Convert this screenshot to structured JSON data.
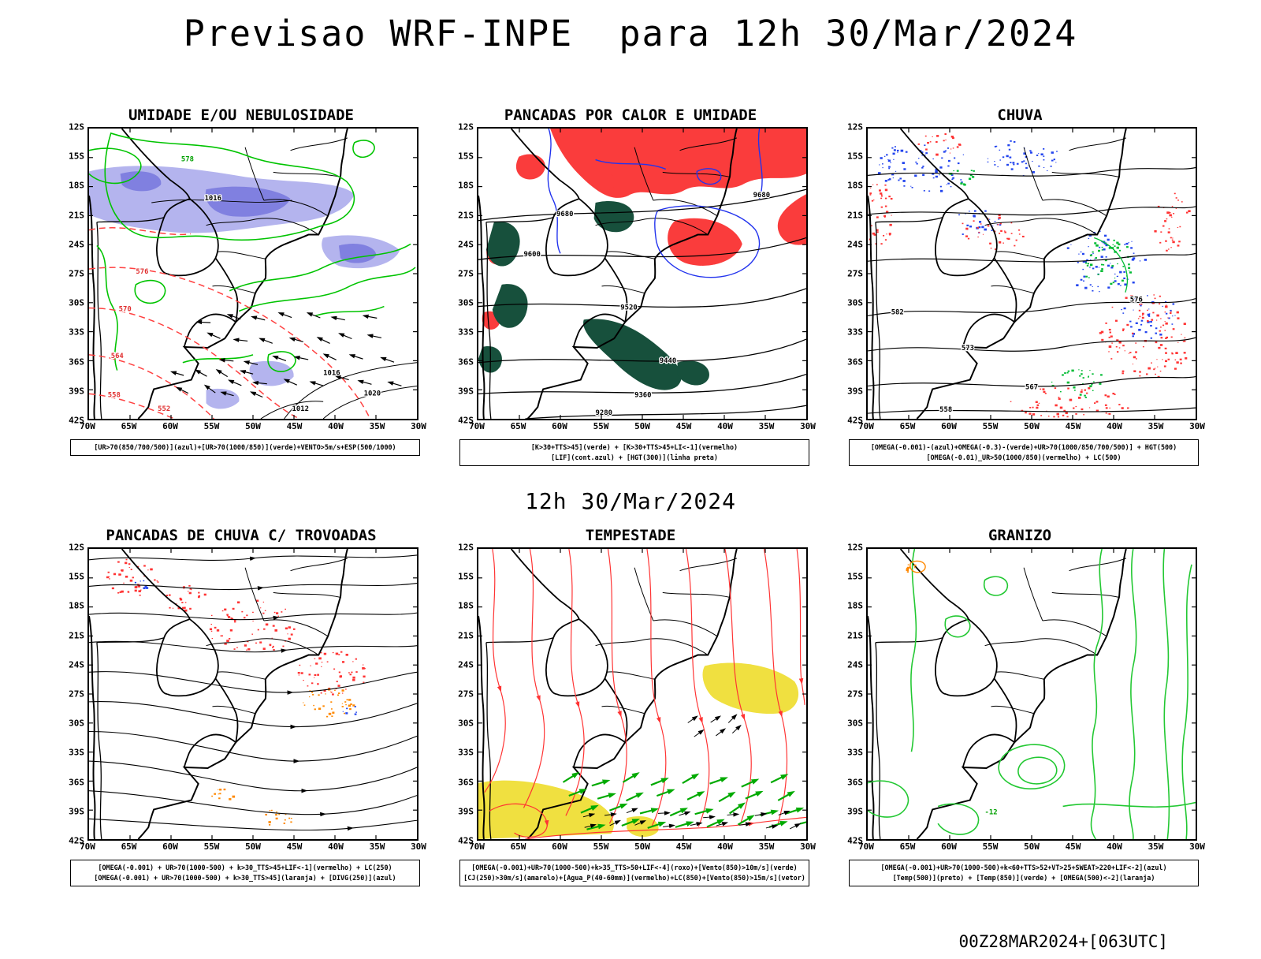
{
  "header": {
    "title": "Previsao WRF-INPE  para 12h 30/Mar/2024"
  },
  "valid_time_label": "12h 30/Mar/2024",
  "run_label": "00Z28MAR2024+[063UTC]",
  "axes": {
    "lat": [
      "12S",
      "15S",
      "18S",
      "21S",
      "24S",
      "27S",
      "30S",
      "33S",
      "36S",
      "39S",
      "42S"
    ],
    "lon": [
      "70W",
      "65W",
      "60W",
      "55W",
      "50W",
      "45W",
      "40W",
      "35W",
      "30W"
    ]
  },
  "colors": {
    "humidity_shade": "#b4b4ee",
    "humidity_shade_dark": "#8080e0",
    "green_contour": "#00c400",
    "red": "#ff3333",
    "dark_green": "#17503c",
    "blue": "#2233ee",
    "orange": "#ff8800",
    "yellow": "#f0e040",
    "bright_green": "#22c832"
  },
  "panels": [
    {
      "id": "umidade-nebulosidade",
      "title": "UMIDADE E/OU NEBULOSIDADE",
      "caption_lines": [
        "[UR>70(850/700/500)](azul)+[UR>70(1000/850)](verde)+VENTO>5m/s+ESP(500/1000)"
      ],
      "contour_labels": [
        "576",
        "570",
        "564",
        "558",
        "552",
        "1016",
        "1016",
        "1020",
        "1012",
        "578"
      ]
    },
    {
      "id": "pancadas-calor-umidade",
      "title": "PANCADAS POR CALOR E UMIDADE",
      "caption_lines": [
        "[K>30+TTS>45](verde) + [K>30+TTS>45+LI<-1](vermelho)",
        "[LIF](cont.azul) + [HGT(300)](linha preta)"
      ],
      "contour_labels": [
        "9680",
        "9680",
        "9600",
        "9520",
        "9440",
        "9360",
        "9280"
      ]
    },
    {
      "id": "chuva",
      "title": "CHUVA",
      "caption_lines": [
        "[OMEGA(-0.001)-(azul)+OMEGA(-0.3)-(verde)+UR>70(1000/850/700/500)] + HGT(500)",
        "[OMEGA(-0.01)_UR>50(1000/850)(vermelho) + LC(500)"
      ],
      "contour_labels": [
        "582",
        "576",
        "573",
        "567",
        "558"
      ]
    },
    {
      "id": "pancadas-chuva-trovoadas",
      "title": "PANCADAS DE CHUVA C/ TROVOADAS",
      "caption_lines": [
        "[OMEGA(-0.001) + UR>70(1000-500) + k>30_TTS>45+LIF<-1](vermelho) + LC(250)",
        "[OMEGA(-0.001) + UR>70(1000-500) + k>30_TTS>45](laranja) + [DIVG(250)](azul)"
      ]
    },
    {
      "id": "tempestade",
      "title": "TEMPESTADE",
      "caption_lines": [
        "[OMEGA(-0.001)+UR>70(1000-500)+k>35_TTS>50+LIF<-4](roxo)+[Vento(850)>10m/s](verde)",
        "[CJ(250)>30m/s](amarelo)+[Agua_P(40-60mm)](vermelho)+LC(850)+[Vento(850)>15m/s](vetor)"
      ]
    },
    {
      "id": "granizo",
      "title": "GRANIZO",
      "caption_lines": [
        "[OMEGA(-0.001)+UR>70(1000-500)+k<60+TTS>52+VT>25+SWEAT>220+LIF<-2](azul)",
        "[Temp(500)](preto) + [Temp(850)](verde) + [OMEGA(500)<-2](laranja)"
      ],
      "contour_labels": [
        "-12"
      ]
    }
  ]
}
